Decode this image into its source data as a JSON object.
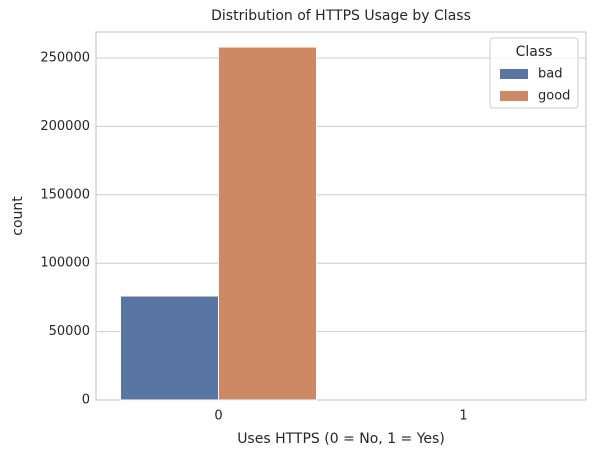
{
  "chart_data": {
    "type": "bar",
    "title": "Distribution of HTTPS Usage by Class",
    "x_label": "Uses HTTPS (0 = No, 1 = Yes)",
    "y_label": "count",
    "categories": [
      "0",
      "1"
    ],
    "series": [
      {
        "name": "bad",
        "color": "#5975a4",
        "values": [
          76000,
          0
        ]
      },
      {
        "name": "good",
        "color": "#cc8963",
        "values": [
          258000,
          0
        ]
      }
    ],
    "legend_title": "Class",
    "legend": "upper right",
    "ylim": [
      0,
      269000
    ],
    "yticks": [
      0,
      50000,
      100000,
      150000,
      200000,
      250000
    ],
    "grid": true
  }
}
